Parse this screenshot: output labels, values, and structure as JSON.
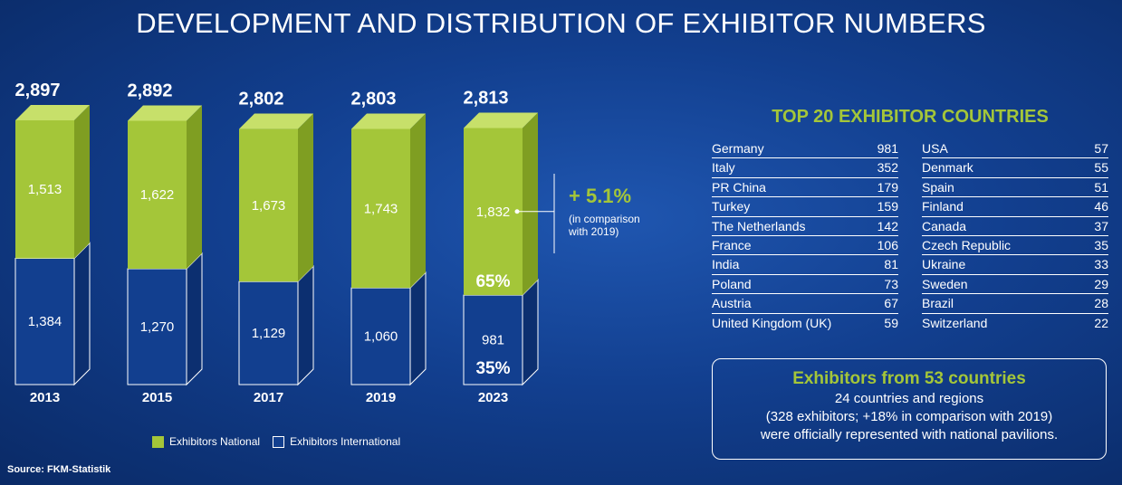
{
  "title": "DEVELOPMENT AND DISTRIBUTION OF EXHIBITOR NUMBERS",
  "colors": {
    "national": "#a4c639",
    "international": "#123f8f",
    "background": "#123f8f"
  },
  "chart_data": {
    "type": "bar",
    "stacked": true,
    "categories": [
      "2013",
      "2015",
      "2017",
      "2019",
      "2023"
    ],
    "totals": [
      "2,897",
      "2,892",
      "2,802",
      "2,803",
      "2,813"
    ],
    "series": [
      {
        "name": "Exhibitors National",
        "values": [
          1513,
          1622,
          1673,
          1743,
          1832
        ],
        "labels": [
          "1,513",
          "1,622",
          "1,673",
          "1,743",
          "1,832"
        ]
      },
      {
        "name": "Exhibitors International",
        "values": [
          1384,
          1270,
          1129,
          1060,
          981
        ],
        "labels": [
          "1,384",
          "1,270",
          "1,129",
          "1,060",
          "981"
        ]
      }
    ],
    "shares_2023": {
      "national": "65%",
      "international": "35%"
    },
    "ylim": [
      0,
      2897
    ]
  },
  "change": {
    "value": "+ 5.1%",
    "note_line1": "(in comparison",
    "note_line2": "with 2019)"
  },
  "source": "Source: FKM-Statistik",
  "top_countries": {
    "title": "TOP 20 EXHIBITOR COUNTRIES",
    "left": [
      {
        "country": "Germany",
        "count": "981"
      },
      {
        "country": "Italy",
        "count": "352"
      },
      {
        "country": "PR China",
        "count": "179"
      },
      {
        "country": "Turkey",
        "count": "159"
      },
      {
        "country": "The Netherlands",
        "count": "142"
      },
      {
        "country": "France",
        "count": "106"
      },
      {
        "country": "India",
        "count": "81"
      },
      {
        "country": "Poland",
        "count": "73"
      },
      {
        "country": "Austria",
        "count": "67"
      },
      {
        "country": "United Kingdom (UK)",
        "count": "59"
      }
    ],
    "right": [
      {
        "country": "USA",
        "count": "57"
      },
      {
        "country": "Denmark",
        "count": "55"
      },
      {
        "country": "Spain",
        "count": "51"
      },
      {
        "country": "Finland",
        "count": "46"
      },
      {
        "country": "Canada",
        "count": "37"
      },
      {
        "country": "Czech Republic",
        "count": "35"
      },
      {
        "country": "Ukraine",
        "count": "33"
      },
      {
        "country": "Sweden",
        "count": "29"
      },
      {
        "country": "Brazil",
        "count": "28"
      },
      {
        "country": "Switzerland",
        "count": "22"
      }
    ]
  },
  "summary": {
    "headline": "Exhibitors from 53 countries",
    "line1": "24 countries and regions",
    "line2": "(328 exhibitors; +18% in comparison with 2019)",
    "line3": "were officially represented with national pavilions."
  }
}
